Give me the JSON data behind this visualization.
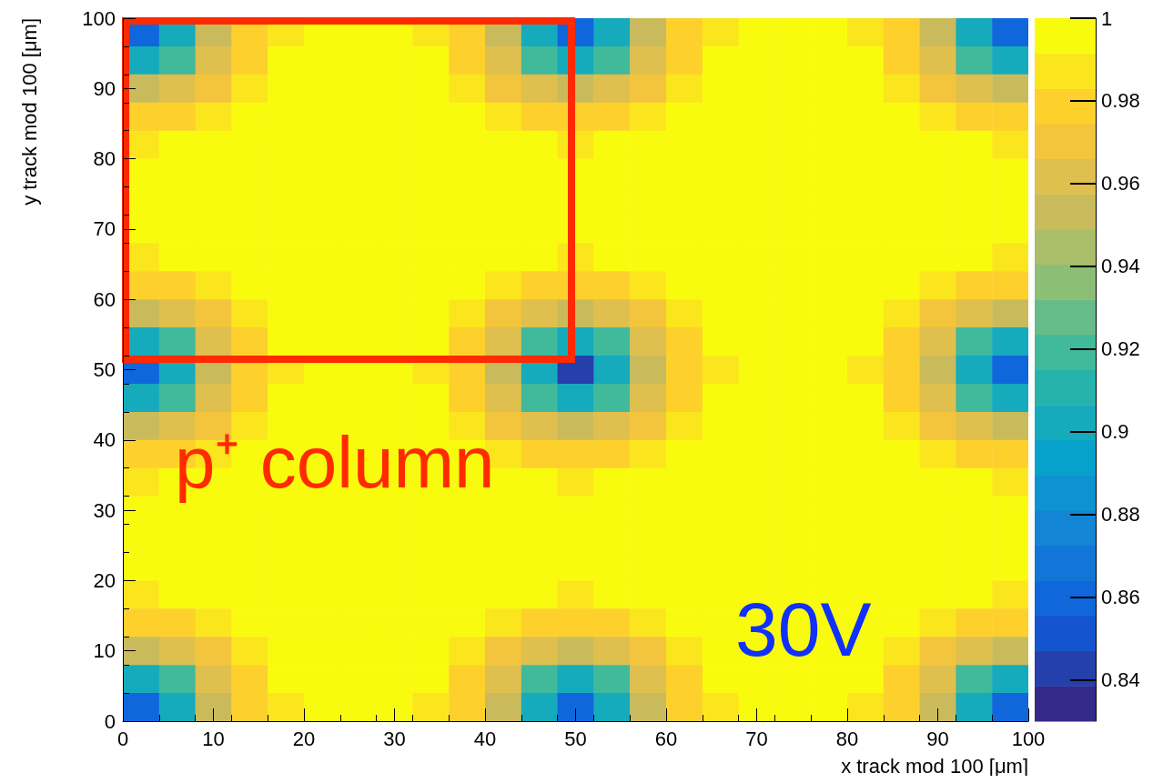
{
  "chart_data": {
    "type": "heatmap",
    "xlabel": "x track mod 100 [μm]",
    "ylabel": "y track mod 100 [μm]",
    "annotations": [
      "p⁺ column",
      "30V"
    ],
    "x": [
      2,
      6,
      10,
      14,
      18,
      22,
      26,
      30,
      34,
      38,
      42,
      46,
      50,
      54,
      58,
      62,
      66,
      70,
      74,
      78,
      82,
      86,
      90,
      94,
      98
    ],
    "y": [
      98,
      94,
      90,
      86,
      82,
      78,
      74,
      70,
      66,
      62,
      58,
      54,
      50,
      46,
      42,
      38,
      34,
      30,
      26,
      22,
      18,
      14,
      10,
      6,
      2
    ],
    "xlim": [
      0,
      100
    ],
    "xticks": [
      0,
      10,
      20,
      30,
      40,
      50,
      60,
      70,
      80,
      90,
      100
    ],
    "ylim": [
      0,
      100
    ],
    "yticks": [
      0,
      10,
      20,
      30,
      40,
      50,
      60,
      70,
      80,
      90,
      100
    ],
    "clim": [
      0.83,
      1
    ],
    "cticks": [
      0.84,
      0.86,
      0.88,
      0.9,
      0.92,
      0.94,
      0.96,
      0.98,
      {
        "value": 1,
        "label": "1"
      }
    ],
    "cells": [
      [
        0.86,
        0.9,
        0.95,
        0.98,
        0.99,
        1,
        1,
        1,
        0.99,
        0.98,
        0.95,
        0.9,
        0.86,
        0.9,
        0.95,
        0.98,
        0.99,
        1,
        1,
        1,
        0.99,
        0.98,
        0.95,
        0.9,
        0.86
      ],
      [
        0.9,
        0.92,
        0.96,
        0.98,
        1,
        1,
        1,
        1,
        1,
        0.98,
        0.96,
        0.92,
        0.9,
        0.92,
        0.96,
        0.98,
        1,
        1,
        1,
        1,
        1,
        0.98,
        0.96,
        0.92,
        0.9
      ],
      [
        0.95,
        0.96,
        0.97,
        0.99,
        1,
        1,
        1,
        1,
        1,
        0.99,
        0.97,
        0.96,
        0.95,
        0.96,
        0.97,
        0.99,
        1,
        1,
        1,
        1,
        1,
        0.99,
        0.97,
        0.96,
        0.95
      ],
      [
        0.98,
        0.98,
        0.99,
        1,
        1,
        1,
        1,
        1,
        1,
        1,
        0.99,
        0.98,
        0.98,
        0.98,
        0.99,
        1,
        1,
        1,
        1,
        1,
        1,
        1,
        0.99,
        0.98,
        0.98
      ],
      [
        0.99,
        1,
        1,
        1,
        1,
        1,
        1,
        1,
        1,
        1,
        1,
        1,
        0.99,
        1,
        1,
        1,
        1,
        1,
        1,
        1,
        1,
        1,
        1,
        1,
        0.99
      ],
      [
        1,
        1,
        1,
        1,
        1,
        1,
        1,
        1,
        1,
        1,
        1,
        1,
        1,
        1,
        1,
        1,
        1,
        1,
        1,
        1,
        1,
        1,
        1,
        1,
        1
      ],
      [
        1,
        1,
        1,
        1,
        1,
        1,
        1,
        1,
        1,
        1,
        1,
        1,
        1,
        1,
        1,
        1,
        1,
        1,
        1,
        1,
        1,
        1,
        1,
        1,
        1
      ],
      [
        1,
        1,
        1,
        1,
        1,
        1,
        1,
        1,
        1,
        1,
        1,
        1,
        1,
        1,
        1,
        1,
        1,
        1,
        1,
        1,
        1,
        1,
        1,
        1,
        1
      ],
      [
        0.99,
        1,
        1,
        1,
        1,
        1,
        1,
        1,
        1,
        1,
        1,
        1,
        0.99,
        1,
        1,
        1,
        1,
        1,
        1,
        1,
        1,
        1,
        1,
        1,
        0.99
      ],
      [
        0.98,
        0.98,
        0.99,
        1,
        1,
        1,
        1,
        1,
        1,
        1,
        0.99,
        0.98,
        0.98,
        0.98,
        0.99,
        1,
        1,
        1,
        1,
        1,
        1,
        1,
        0.99,
        0.98,
        0.98
      ],
      [
        0.95,
        0.96,
        0.97,
        0.99,
        1,
        1,
        1,
        1,
        1,
        0.99,
        0.97,
        0.96,
        0.95,
        0.96,
        0.97,
        0.99,
        1,
        1,
        1,
        1,
        1,
        0.99,
        0.97,
        0.96,
        0.95
      ],
      [
        0.9,
        0.92,
        0.96,
        0.98,
        1,
        1,
        1,
        1,
        1,
        0.98,
        0.96,
        0.92,
        0.9,
        0.92,
        0.96,
        0.98,
        1,
        1,
        1,
        1,
        1,
        0.98,
        0.96,
        0.92,
        0.9
      ],
      [
        0.86,
        0.9,
        0.95,
        0.98,
        0.99,
        1,
        1,
        1,
        0.99,
        0.98,
        0.95,
        0.9,
        0.84,
        0.9,
        0.95,
        0.98,
        0.99,
        1,
        1,
        1,
        0.99,
        0.98,
        0.95,
        0.9,
        0.86
      ],
      [
        0.9,
        0.92,
        0.96,
        0.98,
        1,
        1,
        1,
        1,
        1,
        0.98,
        0.96,
        0.92,
        0.9,
        0.92,
        0.96,
        0.98,
        1,
        1,
        1,
        1,
        1,
        0.98,
        0.96,
        0.92,
        0.9
      ],
      [
        0.95,
        0.96,
        0.97,
        0.99,
        1,
        1,
        1,
        1,
        1,
        0.99,
        0.97,
        0.96,
        0.95,
        0.96,
        0.97,
        0.99,
        1,
        1,
        1,
        1,
        1,
        0.99,
        0.97,
        0.96,
        0.95
      ],
      [
        0.98,
        0.98,
        0.99,
        1,
        1,
        1,
        1,
        1,
        1,
        1,
        0.99,
        0.98,
        0.98,
        0.98,
        0.99,
        1,
        1,
        1,
        1,
        1,
        1,
        1,
        0.99,
        0.98,
        0.98
      ],
      [
        0.99,
        1,
        1,
        1,
        1,
        1,
        1,
        1,
        1,
        1,
        1,
        1,
        0.99,
        1,
        1,
        1,
        1,
        1,
        1,
        1,
        1,
        1,
        1,
        1,
        0.99
      ],
      [
        1,
        1,
        1,
        1,
        1,
        1,
        1,
        1,
        1,
        1,
        1,
        1,
        1,
        1,
        1,
        1,
        1,
        1,
        1,
        1,
        1,
        1,
        1,
        1,
        1
      ],
      [
        1,
        1,
        1,
        1,
        1,
        1,
        1,
        1,
        1,
        1,
        1,
        1,
        1,
        1,
        1,
        1,
        1,
        1,
        1,
        1,
        1,
        1,
        1,
        1,
        1
      ],
      [
        1,
        1,
        1,
        1,
        1,
        1,
        1,
        1,
        1,
        1,
        1,
        1,
        1,
        1,
        1,
        1,
        1,
        1,
        1,
        1,
        1,
        1,
        1,
        1,
        1
      ],
      [
        0.99,
        1,
        1,
        1,
        1,
        1,
        1,
        1,
        1,
        1,
        1,
        1,
        0.99,
        1,
        1,
        1,
        1,
        1,
        1,
        1,
        1,
        1,
        1,
        1,
        0.99
      ],
      [
        0.98,
        0.98,
        0.99,
        1,
        1,
        1,
        1,
        1,
        1,
        1,
        0.99,
        0.98,
        0.98,
        0.98,
        0.99,
        1,
        1,
        1,
        1,
        1,
        1,
        1,
        0.99,
        0.98,
        0.98
      ],
      [
        0.95,
        0.96,
        0.97,
        0.99,
        1,
        1,
        1,
        1,
        1,
        0.99,
        0.97,
        0.96,
        0.95,
        0.96,
        0.97,
        0.99,
        1,
        1,
        1,
        1,
        1,
        0.99,
        0.97,
        0.96,
        0.95
      ],
      [
        0.9,
        0.92,
        0.96,
        0.98,
        1,
        1,
        1,
        1,
        1,
        0.98,
        0.96,
        0.92,
        0.9,
        0.92,
        0.96,
        0.98,
        1,
        1,
        1,
        1,
        1,
        0.98,
        0.96,
        0.92,
        0.9
      ],
      [
        0.86,
        0.9,
        0.95,
        0.98,
        0.99,
        1,
        1,
        1,
        0.99,
        0.98,
        0.95,
        0.9,
        0.86,
        0.9,
        0.95,
        0.98,
        0.99,
        1,
        1,
        1,
        0.99,
        0.98,
        0.95,
        0.9,
        0.86
      ]
    ]
  }
}
